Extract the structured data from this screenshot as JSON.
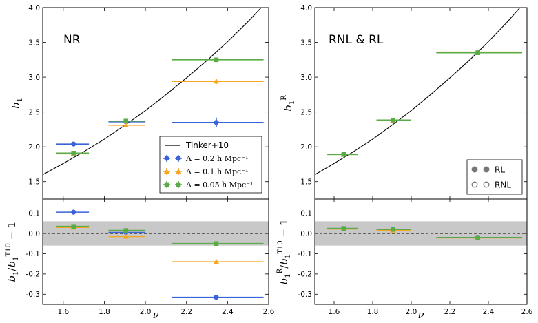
{
  "chart_data": [
    {
      "id": "left",
      "type": "scatter",
      "title": "NR",
      "xlabel": "ν",
      "xlim": [
        1.5,
        2.6
      ],
      "xticks": [
        1.6,
        1.8,
        2.0,
        2.2,
        2.4,
        2.6
      ],
      "top": {
        "ylabel": "b_1",
        "ylim": [
          1.25,
          4.0
        ],
        "yticks": [
          1.5,
          2.0,
          2.5,
          3.0,
          3.5,
          4.0
        ],
        "curve": {
          "name": "Tinker+10",
          "x": [
            1.5,
            1.6,
            1.7,
            1.8,
            1.9,
            2.0,
            2.1,
            2.2,
            2.3,
            2.4,
            2.5,
            2.58
          ],
          "y": [
            1.6,
            1.76,
            1.93,
            2.11,
            2.31,
            2.52,
            2.75,
            2.99,
            3.24,
            3.51,
            3.8,
            4.05
          ]
        },
        "series": [
          {
            "name": "Λ = 0.2 h Mpc⁻¹",
            "color": "#3a63d8",
            "marker": "circle",
            "points": [
              {
                "x": 1.65,
                "xlo": 1.565,
                "xhi": 1.725,
                "y": 2.04,
                "yerr": 0.015
              },
              {
                "x": 1.905,
                "xlo": 1.82,
                "xhi": 2.0,
                "y": 2.36,
                "yerr": 0.02
              },
              {
                "x": 2.345,
                "xlo": 2.13,
                "xhi": 2.575,
                "y": 2.35,
                "yerr": 0.07
              }
            ]
          },
          {
            "name": "Λ = 0.1 h Mpc⁻¹",
            "color": "#f5a623",
            "marker": "triangle",
            "points": [
              {
                "x": 1.65,
                "xlo": 1.565,
                "xhi": 1.725,
                "y": 1.9,
                "yerr": 0.015
              },
              {
                "x": 1.905,
                "xlo": 1.82,
                "xhi": 2.0,
                "y": 2.31,
                "yerr": 0.02
              },
              {
                "x": 2.345,
                "xlo": 2.13,
                "xhi": 2.575,
                "y": 2.94,
                "yerr": 0.04
              }
            ]
          },
          {
            "name": "Λ = 0.05 h Mpc⁻¹",
            "color": "#5aaa46",
            "marker": "square",
            "points": [
              {
                "x": 1.65,
                "xlo": 1.565,
                "xhi": 1.725,
                "y": 1.91,
                "yerr": 0.015
              },
              {
                "x": 1.905,
                "xlo": 1.82,
                "xhi": 2.0,
                "y": 2.37,
                "yerr": 0.02
              },
              {
                "x": 2.345,
                "xlo": 2.13,
                "xhi": 2.575,
                "y": 3.25,
                "yerr": 0.03
              }
            ]
          }
        ]
      },
      "bottom": {
        "ylabel": "b_1/b_1^T10 − 1",
        "ylim": [
          -0.35,
          0.17
        ],
        "yticks": [
          -0.3,
          -0.2,
          -0.1,
          0.0,
          0.1
        ],
        "band": [
          -0.06,
          0.06
        ],
        "series": [
          {
            "color": "#3a63d8",
            "marker": "circle",
            "points": [
              {
                "x": 1.65,
                "xlo": 1.565,
                "xhi": 1.725,
                "y": 0.105,
                "yerr": 0.012
              },
              {
                "x": 1.905,
                "xlo": 1.82,
                "xhi": 2.0,
                "y": 0.005,
                "yerr": 0.01
              },
              {
                "x": 2.345,
                "xlo": 2.13,
                "xhi": 2.575,
                "y": -0.315,
                "yerr": 0.012
              }
            ]
          },
          {
            "color": "#f5a623",
            "marker": "triangle",
            "points": [
              {
                "x": 1.65,
                "xlo": 1.565,
                "xhi": 1.725,
                "y": 0.03,
                "yerr": 0.008
              },
              {
                "x": 1.905,
                "xlo": 1.82,
                "xhi": 2.0,
                "y": -0.015,
                "yerr": 0.008
              },
              {
                "x": 2.345,
                "xlo": 2.13,
                "xhi": 2.575,
                "y": -0.14,
                "yerr": 0.01
              }
            ]
          },
          {
            "color": "#5aaa46",
            "marker": "square",
            "points": [
              {
                "x": 1.65,
                "xlo": 1.565,
                "xhi": 1.725,
                "y": 0.035,
                "yerr": 0.008
              },
              {
                "x": 1.905,
                "xlo": 1.82,
                "xhi": 2.0,
                "y": 0.015,
                "yerr": 0.008
              },
              {
                "x": 2.345,
                "xlo": 2.13,
                "xhi": 2.575,
                "y": -0.05,
                "yerr": 0.01
              }
            ]
          }
        ]
      },
      "legend": {
        "position": "lower-right",
        "entries": [
          {
            "label": "Tinker+10",
            "kind": "line",
            "color": "#000000"
          },
          {
            "label": "Λ = 0.2 h Mpc⁻¹",
            "kind": "marker",
            "marker": "circle",
            "color": "#3a63d8"
          },
          {
            "label": "Λ = 0.1 h Mpc⁻¹",
            "kind": "marker",
            "marker": "triangle",
            "color": "#f5a623"
          },
          {
            "label": "Λ = 0.05 h Mpc⁻¹",
            "kind": "marker",
            "marker": "square",
            "color": "#5aaa46"
          }
        ]
      }
    },
    {
      "id": "right",
      "type": "scatter",
      "title": "RNL & RL",
      "xlabel": "ν",
      "xlim": [
        1.5,
        2.6
      ],
      "xticks": [
        1.6,
        1.8,
        2.0,
        2.2,
        2.4,
        2.6
      ],
      "top": {
        "ylabel": "b_1^R",
        "ylim": [
          1.25,
          4.0
        ],
        "yticks": [
          1.5,
          2.0,
          2.5,
          3.0,
          3.5,
          4.0
        ],
        "curve": {
          "name": "Tinker+10",
          "x": [
            1.5,
            1.6,
            1.7,
            1.8,
            1.9,
            2.0,
            2.1,
            2.2,
            2.3,
            2.4,
            2.5,
            2.58
          ],
          "y": [
            1.6,
            1.76,
            1.93,
            2.11,
            2.31,
            2.52,
            2.75,
            2.99,
            3.24,
            3.51,
            3.8,
            4.05
          ]
        },
        "series": [
          {
            "color": "#3a63d8",
            "marker": "circle",
            "points": [
              {
                "x": 1.65,
                "xlo": 1.565,
                "xhi": 1.725,
                "y": 1.895,
                "yerr": 0.01
              },
              {
                "x": 1.905,
                "xlo": 1.82,
                "xhi": 2.0,
                "y": 2.38,
                "yerr": 0.01
              },
              {
                "x": 2.345,
                "xlo": 2.13,
                "xhi": 2.575,
                "y": 3.355,
                "yerr": 0.01
              }
            ]
          },
          {
            "color": "#f5a623",
            "marker": "triangle",
            "points": [
              {
                "x": 1.65,
                "xlo": 1.565,
                "xhi": 1.725,
                "y": 1.89,
                "yerr": 0.01
              },
              {
                "x": 1.905,
                "xlo": 1.82,
                "xhi": 2.0,
                "y": 2.38,
                "yerr": 0.01
              },
              {
                "x": 2.345,
                "xlo": 2.13,
                "xhi": 2.575,
                "y": 3.36,
                "yerr": 0.01
              }
            ]
          },
          {
            "color": "#5aaa46",
            "marker": "square",
            "points": [
              {
                "x": 1.65,
                "xlo": 1.565,
                "xhi": 1.725,
                "y": 1.89,
                "yerr": 0.01
              },
              {
                "x": 1.905,
                "xlo": 1.82,
                "xhi": 2.0,
                "y": 2.385,
                "yerr": 0.01
              },
              {
                "x": 2.345,
                "xlo": 2.13,
                "xhi": 2.575,
                "y": 3.35,
                "yerr": 0.01
              }
            ]
          }
        ]
      },
      "bottom": {
        "ylabel": "b_1^R/b_1^T10 − 1",
        "ylim": [
          -0.35,
          0.17
        ],
        "yticks": [
          -0.3,
          -0.2,
          -0.1,
          0.0,
          0.1
        ],
        "band": [
          -0.06,
          0.06
        ],
        "series": [
          {
            "color": "#3a63d8",
            "marker": "circle",
            "points": [
              {
                "x": 1.65,
                "xlo": 1.565,
                "xhi": 1.725,
                "y": 0.025,
                "yerr": 0.006
              },
              {
                "x": 1.905,
                "xlo": 1.82,
                "xhi": 2.0,
                "y": 0.02,
                "yerr": 0.006
              },
              {
                "x": 2.345,
                "xlo": 2.13,
                "xhi": 2.575,
                "y": -0.02,
                "yerr": 0.006
              }
            ]
          },
          {
            "color": "#f5a623",
            "marker": "triangle",
            "points": [
              {
                "x": 1.65,
                "xlo": 1.565,
                "xhi": 1.725,
                "y": 0.022,
                "yerr": 0.006
              },
              {
                "x": 1.905,
                "xlo": 1.82,
                "xhi": 2.0,
                "y": 0.015,
                "yerr": 0.006
              },
              {
                "x": 2.345,
                "xlo": 2.13,
                "xhi": 2.575,
                "y": -0.022,
                "yerr": 0.006
              }
            ]
          },
          {
            "color": "#5aaa46",
            "marker": "square",
            "points": [
              {
                "x": 1.65,
                "xlo": 1.565,
                "xhi": 1.725,
                "y": 0.025,
                "yerr": 0.006
              },
              {
                "x": 1.905,
                "xlo": 1.82,
                "xhi": 2.0,
                "y": 0.02,
                "yerr": 0.006
              },
              {
                "x": 2.345,
                "xlo": 2.13,
                "xhi": 2.575,
                "y": -0.02,
                "yerr": 0.006
              }
            ]
          }
        ]
      },
      "legend": {
        "position": "lower-right",
        "entries": [
          {
            "label": "RL",
            "kind": "filled",
            "color": "#777777"
          },
          {
            "label": "RNL",
            "kind": "open",
            "color": "#777777"
          }
        ]
      }
    }
  ]
}
